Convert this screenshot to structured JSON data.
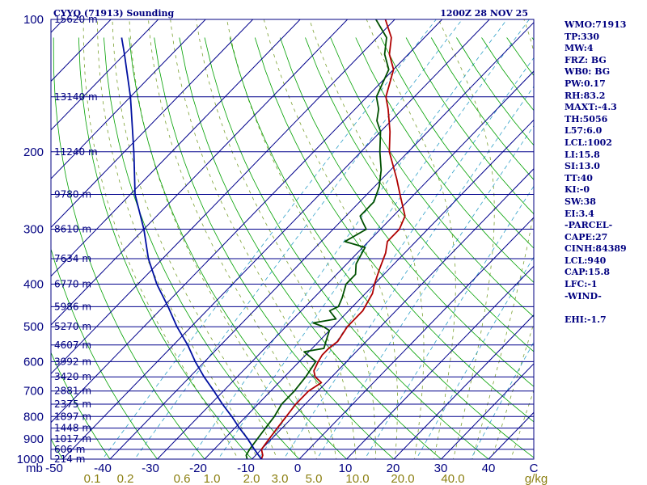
{
  "header": {
    "station": "CYYQ (71913) Sounding",
    "time": "1200Z 28 NOV 25"
  },
  "indices": [
    "WMO:71913",
    "TP:330",
    "MW:4",
    "FRZ: BG",
    "WB0: BG",
    "PW:0.17",
    "RH:83.2",
    "MAXT:-4.3",
    "TH:5056",
    "L57:6.0",
    "LCL:1002",
    "LI:15.8",
    "SI:13.0",
    "TT:40",
    "KI:-0",
    "SW:38",
    "EI:3.4",
    "-PARCEL-",
    "CAPE:27",
    "CINH:84389",
    "LCL:940",
    "CAP:15.8",
    "LFC:-1",
    "-WIND-"
  ],
  "ehi": "EHI:-1.7",
  "colors": {
    "frame": "#000080",
    "isobar": "#00008b",
    "isotherm": "#00008b",
    "dry_adiabat": "#00a000",
    "moist_adiabat": "#7aa030",
    "mixing_ratio": "#30a0c8",
    "temperature": "#b00000",
    "dewpoint": "#005000",
    "parcel": "#0010a0",
    "axis_text": "#000080",
    "mixing_text": "#8b7f10"
  },
  "chart_data": {
    "type": "line",
    "title": "CYYQ (71913) Sounding",
    "subtitle": "1200Z 28 NOV 25",
    "xlabel": "",
    "ylabel": "mb",
    "y_scale": "log-pressure",
    "ylim": [
      1000,
      100
    ],
    "xlim": [
      -50,
      50
    ],
    "pressure_ticks": [
      "100",
      "200",
      "300",
      "400",
      "500",
      "600",
      "700",
      "800",
      "900",
      "1000"
    ],
    "temperature_ticks": [
      "-50",
      "-40",
      "-30",
      "-20",
      "-10",
      "0",
      "10",
      "20",
      "30",
      "40",
      "C"
    ],
    "mixing_ratio_ticks": [
      "0.1",
      "0.2",
      "0.6",
      "1.0",
      "2.0",
      "3.0",
      "5.0",
      "10.0",
      "20.0",
      "40.0",
      "g/kg"
    ],
    "height_levels": [
      {
        "p": 100,
        "label": "15620 m"
      },
      {
        "p": 150,
        "label": "13140 m"
      },
      {
        "p": 200,
        "label": "11240 m"
      },
      {
        "p": 250,
        "label": "9780 m"
      },
      {
        "p": 300,
        "label": "8610 m"
      },
      {
        "p": 350,
        "label": "7634 m"
      },
      {
        "p": 400,
        "label": "6770 m"
      },
      {
        "p": 450,
        "label": "5986 m"
      },
      {
        "p": 500,
        "label": "5270 m"
      },
      {
        "p": 550,
        "label": "4607 m"
      },
      {
        "p": 600,
        "label": "3992 m"
      },
      {
        "p": 650,
        "label": "3420 m"
      },
      {
        "p": 700,
        "label": "2881 m"
      },
      {
        "p": 750,
        "label": "2375 m"
      },
      {
        "p": 800,
        "label": "1897 m"
      },
      {
        "p": 850,
        "label": "1448 m"
      },
      {
        "p": 900,
        "label": "1017 m"
      },
      {
        "p": 950,
        "label": "606 m"
      },
      {
        "p": 1000,
        "label": "214 m"
      }
    ],
    "series": [
      {
        "key": "temperature",
        "points": [
          [
            1000,
            -8
          ],
          [
            980,
            -8.5
          ],
          [
            950,
            -10
          ],
          [
            900,
            -10.5
          ],
          [
            850,
            -11
          ],
          [
            800,
            -11.5
          ],
          [
            750,
            -12
          ],
          [
            700,
            -12
          ],
          [
            670,
            -11
          ],
          [
            650,
            -13.5
          ],
          [
            630,
            -15
          ],
          [
            600,
            -16
          ],
          [
            580,
            -16.5
          ],
          [
            560,
            -16.5
          ],
          [
            540,
            -16
          ],
          [
            500,
            -17
          ],
          [
            460,
            -17
          ],
          [
            420,
            -18.5
          ],
          [
            400,
            -20
          ],
          [
            370,
            -22
          ],
          [
            340,
            -24
          ],
          [
            320,
            -26
          ],
          [
            300,
            -26
          ],
          [
            280,
            -27.5
          ],
          [
            250,
            -33
          ],
          [
            230,
            -37
          ],
          [
            200,
            -44
          ],
          [
            180,
            -48
          ],
          [
            160,
            -53
          ],
          [
            150,
            -56
          ],
          [
            130,
            -60
          ],
          [
            120,
            -64
          ],
          [
            110,
            -67
          ],
          [
            100,
            -72
          ]
        ]
      },
      {
        "key": "dewpoint",
        "points": [
          [
            1000,
            -11
          ],
          [
            980,
            -12
          ],
          [
            950,
            -12.5
          ],
          [
            900,
            -13
          ],
          [
            850,
            -13.5
          ],
          [
            800,
            -14
          ],
          [
            750,
            -15
          ],
          [
            700,
            -15
          ],
          [
            650,
            -15.5
          ],
          [
            600,
            -16.5
          ],
          [
            570,
            -21
          ],
          [
            560,
            -17.5
          ],
          [
            540,
            -18.5
          ],
          [
            510,
            -20
          ],
          [
            500,
            -22
          ],
          [
            490,
            -25
          ],
          [
            480,
            -21
          ],
          [
            460,
            -24
          ],
          [
            450,
            -23
          ],
          [
            430,
            -24
          ],
          [
            400,
            -26
          ],
          [
            380,
            -26
          ],
          [
            360,
            -28
          ],
          [
            340,
            -29
          ],
          [
            330,
            -29.5
          ],
          [
            320,
            -35
          ],
          [
            300,
            -33
          ],
          [
            290,
            -35
          ],
          [
            280,
            -37
          ],
          [
            260,
            -37
          ],
          [
            240,
            -39
          ],
          [
            220,
            -42
          ],
          [
            200,
            -46
          ],
          [
            180,
            -50
          ],
          [
            170,
            -53
          ],
          [
            160,
            -55
          ],
          [
            150,
            -58
          ],
          [
            130,
            -61
          ],
          [
            120,
            -65
          ],
          [
            110,
            -68
          ],
          [
            100,
            -74
          ]
        ]
      },
      {
        "key": "parcel",
        "points": [
          [
            1000,
            -8
          ],
          [
            950,
            -11.5
          ],
          [
            900,
            -15
          ],
          [
            850,
            -19
          ],
          [
            800,
            -23
          ],
          [
            750,
            -27.5
          ],
          [
            700,
            -32
          ],
          [
            650,
            -37
          ],
          [
            600,
            -42
          ],
          [
            550,
            -47
          ],
          [
            500,
            -53
          ],
          [
            450,
            -59
          ],
          [
            400,
            -66
          ],
          [
            350,
            -73
          ],
          [
            300,
            -80
          ],
          [
            250,
            -89
          ],
          [
            200,
            -98
          ],
          [
            150,
            -110
          ],
          [
            120,
            -120
          ],
          [
            110,
            -124
          ]
        ]
      }
    ]
  }
}
